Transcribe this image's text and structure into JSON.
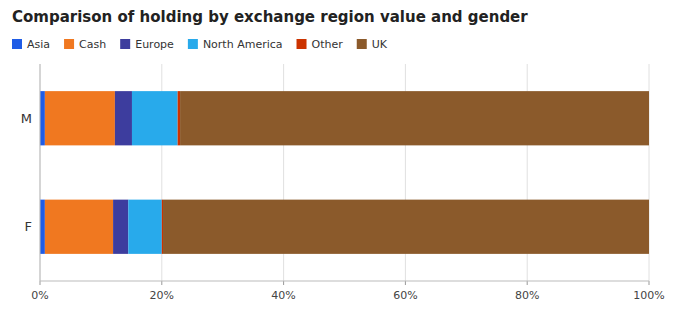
{
  "chart_data": {
    "type": "bar",
    "orientation": "horizontal",
    "stacked": true,
    "title": "Comparison of holding by exchange region value and gender",
    "categories": [
      "M",
      "F"
    ],
    "series": [
      {
        "name": "Asia",
        "color": "#1f5ce6",
        "values": [
          0.8,
          0.8
        ]
      },
      {
        "name": "Cash",
        "color": "#f07820",
        "values": [
          11.5,
          11.2
        ]
      },
      {
        "name": "Europe",
        "color": "#3d3d9e",
        "values": [
          2.8,
          2.5
        ]
      },
      {
        "name": "North America",
        "color": "#28aaeb",
        "values": [
          7.5,
          5.5
        ]
      },
      {
        "name": "Other",
        "color": "#cc3300",
        "values": [
          0.4,
          0.2
        ]
      },
      {
        "name": "UK",
        "color": "#8B5A2B",
        "values": [
          77.0,
          79.8
        ]
      }
    ],
    "xlim": [
      0,
      100
    ],
    "xticks": [
      {
        "value": 0,
        "label": "0%"
      },
      {
        "value": 20,
        "label": "20%"
      },
      {
        "value": 40,
        "label": "40%"
      },
      {
        "value": 60,
        "label": "60%"
      },
      {
        "value": 80,
        "label": "80%"
      },
      {
        "value": 100,
        "label": "100%"
      }
    ],
    "grid": true,
    "legend": "upper left"
  }
}
